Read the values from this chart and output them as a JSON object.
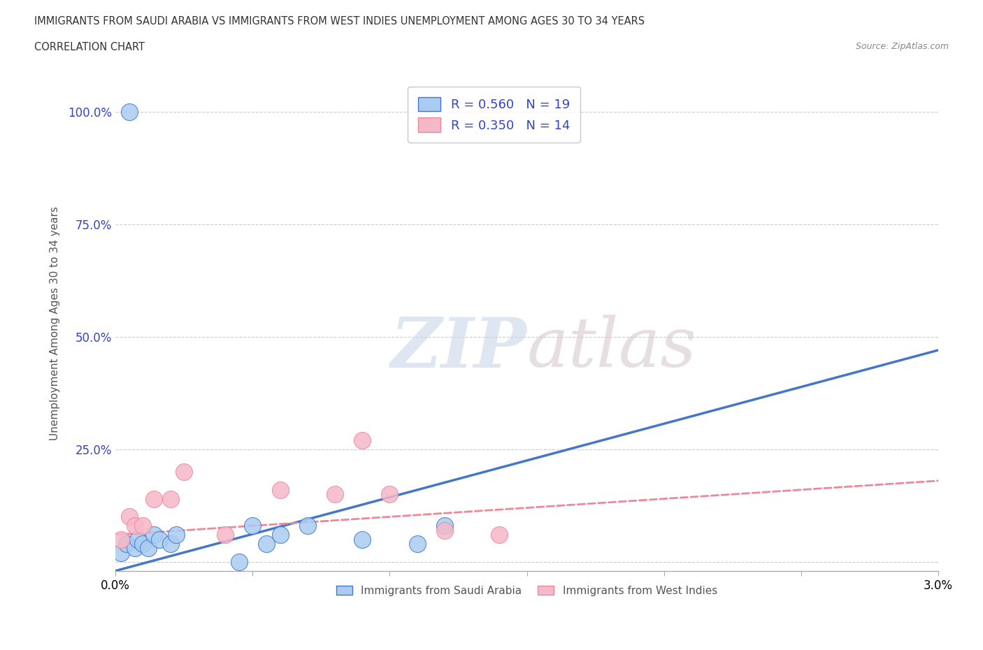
{
  "title_line1": "IMMIGRANTS FROM SAUDI ARABIA VS IMMIGRANTS FROM WEST INDIES UNEMPLOYMENT AMONG AGES 30 TO 34 YEARS",
  "title_line2": "CORRELATION CHART",
  "source": "Source: ZipAtlas.com",
  "ylabel": "Unemployment Among Ages 30 to 34 years",
  "xlim": [
    0.0,
    0.03
  ],
  "ylim": [
    -0.02,
    1.08
  ],
  "xticks": [
    0.0,
    0.03
  ],
  "xticklabels": [
    "0.0%",
    "3.0%"
  ],
  "yticks": [
    0.0,
    0.25,
    0.5,
    0.75,
    1.0
  ],
  "yticklabels": [
    "",
    "25.0%",
    "50.0%",
    "75.0%",
    "100.0%"
  ],
  "saudi_R": 0.56,
  "saudi_N": 19,
  "westindies_R": 0.35,
  "westindies_N": 14,
  "saudi_color": "#aaccf0",
  "westindies_color": "#f5b8c8",
  "saudi_line_color": "#4477cc",
  "westindies_line_color": "#ee8899",
  "legend_text_color": "#3344cc",
  "background_color": "#ffffff",
  "watermark_zip": "ZIP",
  "watermark_atlas": "atlas",
  "grid_color": "#cccccc",
  "saudi_x": [
    0.0002,
    0.0004,
    0.0005,
    0.0007,
    0.0008,
    0.001,
    0.0012,
    0.0014,
    0.0016,
    0.002,
    0.0022,
    0.0045,
    0.005,
    0.0055,
    0.006,
    0.007,
    0.009,
    0.011,
    0.012
  ],
  "saudi_y": [
    0.02,
    0.04,
    1.0,
    0.03,
    0.05,
    0.04,
    0.03,
    0.06,
    0.05,
    0.04,
    0.06,
    0.0,
    0.08,
    0.04,
    0.06,
    0.08,
    0.05,
    0.04,
    0.08
  ],
  "westindies_x": [
    0.0002,
    0.0005,
    0.0007,
    0.001,
    0.0014,
    0.002,
    0.0025,
    0.004,
    0.006,
    0.008,
    0.009,
    0.01,
    0.012,
    0.014
  ],
  "westindies_y": [
    0.05,
    0.1,
    0.08,
    0.08,
    0.14,
    0.14,
    0.2,
    0.06,
    0.16,
    0.15,
    0.27,
    0.15,
    0.07,
    0.06
  ],
  "saudi_trend_x0": 0.0,
  "saudi_trend_y0": -0.02,
  "saudi_trend_x1": 0.03,
  "saudi_trend_y1": 0.47,
  "wi_trend_x0": 0.0,
  "wi_trend_y0": 0.06,
  "wi_trend_x1": 0.03,
  "wi_trend_y1": 0.18
}
